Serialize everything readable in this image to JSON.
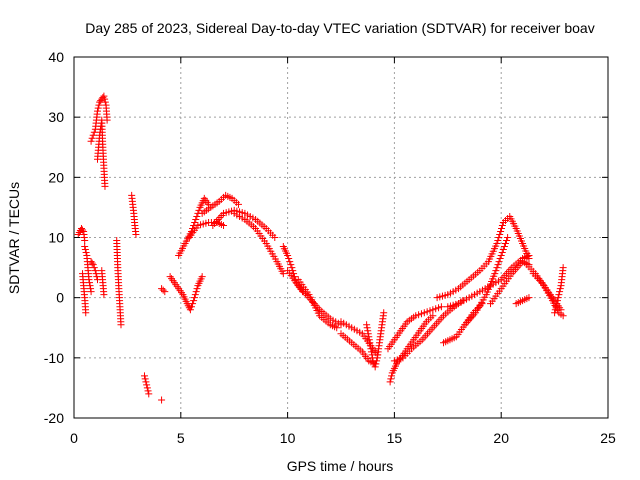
{
  "chart_data": {
    "type": "scatter",
    "title": "Day 285 of 2023, Sidereal Day-to-day VTEC variation (SDTVAR) for receiver boav",
    "xlabel": "GPS time / hours",
    "ylabel": "SDTVAR / TECUs",
    "xlim": [
      0,
      25
    ],
    "ylim": [
      -20,
      40
    ],
    "xticks": [
      0,
      5,
      10,
      15,
      20,
      25
    ],
    "yticks": [
      -20,
      -10,
      0,
      10,
      20,
      30,
      40
    ],
    "xtick_labels": [
      "0",
      "5",
      "10",
      "15",
      "20",
      "25"
    ],
    "ytick_labels": [
      "-20",
      "-10",
      "0",
      "10",
      "20",
      "30",
      "40"
    ],
    "grid": true,
    "marker": "+",
    "colors": {
      "series": "#ff0000",
      "grid": "#a0a0a0",
      "axis": "#000000"
    },
    "segments": [
      [
        [
          0.2,
          10.5
        ],
        [
          0.35,
          11.5
        ],
        [
          0.45,
          11.0
        ],
        [
          0.5,
          9.5
        ]
      ],
      [
        [
          0.4,
          4.0
        ],
        [
          0.45,
          2.0
        ],
        [
          0.5,
          0.0
        ],
        [
          0.55,
          -2.5
        ]
      ],
      [
        [
          0.5,
          8.5
        ],
        [
          0.6,
          7.0
        ],
        [
          0.65,
          5.0
        ],
        [
          0.7,
          3.0
        ],
        [
          0.8,
          1.0
        ]
      ],
      [
        [
          0.8,
          6.0
        ],
        [
          0.9,
          5.5
        ],
        [
          1.0,
          4.5
        ],
        [
          1.1,
          3.0
        ]
      ],
      [
        [
          0.8,
          26.0
        ],
        [
          0.9,
          27.0
        ],
        [
          1.0,
          28.0
        ],
        [
          1.1,
          31.0
        ],
        [
          1.2,
          32.5
        ],
        [
          1.3,
          33.0
        ],
        [
          1.4,
          33.5
        ],
        [
          1.5,
          32.0
        ],
        [
          1.55,
          29.5
        ]
      ],
      [
        [
          1.1,
          23.0
        ],
        [
          1.15,
          25.0
        ],
        [
          1.2,
          27.0
        ],
        [
          1.3,
          29.5
        ],
        [
          1.35,
          25.0
        ],
        [
          1.4,
          21.5
        ],
        [
          1.45,
          18.5
        ]
      ],
      [
        [
          1.3,
          4.5
        ],
        [
          1.35,
          2.5
        ],
        [
          1.4,
          0.5
        ]
      ],
      [
        [
          2.0,
          9.5
        ],
        [
          2.05,
          5.0
        ],
        [
          2.1,
          1.5
        ],
        [
          2.15,
          -1.5
        ],
        [
          2.2,
          -4.5
        ]
      ],
      [
        [
          2.7,
          17.0
        ],
        [
          2.75,
          15.5
        ],
        [
          2.8,
          14.0
        ],
        [
          2.85,
          12.0
        ],
        [
          2.9,
          10.5
        ]
      ],
      [
        [
          3.3,
          -13.0
        ],
        [
          3.4,
          -14.5
        ],
        [
          3.5,
          -16.0
        ]
      ],
      [
        [
          4.1,
          -17.0
        ]
      ],
      [
        [
          4.1,
          1.5
        ],
        [
          4.25,
          1.0
        ]
      ],
      [
        [
          4.5,
          3.5
        ],
        [
          4.7,
          2.5
        ],
        [
          4.9,
          1.5
        ],
        [
          5.1,
          0.5
        ],
        [
          5.3,
          -1.0
        ],
        [
          5.45,
          -2.0
        ],
        [
          5.6,
          -0.5
        ],
        [
          5.8,
          2.0
        ],
        [
          6.0,
          3.5
        ]
      ],
      [
        [
          4.9,
          7.0
        ],
        [
          5.2,
          9.0
        ],
        [
          5.5,
          11.0
        ],
        [
          5.7,
          13.0
        ],
        [
          5.9,
          15.0
        ],
        [
          6.1,
          16.5
        ],
        [
          6.3,
          15.5
        ]
      ],
      [
        [
          5.4,
          10.0
        ],
        [
          5.8,
          12.0
        ],
        [
          6.3,
          12.5
        ],
        [
          6.7,
          12.5
        ],
        [
          7.0,
          12.0
        ]
      ],
      [
        [
          6.0,
          14.0
        ],
        [
          6.4,
          15.0
        ],
        [
          6.8,
          16.0
        ],
        [
          7.1,
          17.0
        ],
        [
          7.4,
          16.5
        ],
        [
          7.7,
          15.5
        ]
      ],
      [
        [
          6.5,
          12.0
        ],
        [
          7.0,
          14.0
        ],
        [
          7.5,
          14.5
        ],
        [
          8.0,
          14.0
        ],
        [
          8.5,
          13.0
        ],
        [
          9.0,
          11.5
        ],
        [
          9.4,
          10.0
        ]
      ],
      [
        [
          7.5,
          14.0
        ],
        [
          8.0,
          13.0
        ],
        [
          8.5,
          11.5
        ],
        [
          9.0,
          9.0
        ],
        [
          9.5,
          6.0
        ],
        [
          9.8,
          4.0
        ]
      ],
      [
        [
          9.8,
          8.5
        ],
        [
          10.0,
          7.0
        ],
        [
          10.2,
          5.0
        ],
        [
          10.4,
          2.5
        ],
        [
          10.7,
          1.0
        ]
      ],
      [
        [
          10.0,
          4.5
        ],
        [
          10.5,
          2.0
        ],
        [
          11.0,
          0.0
        ],
        [
          11.5,
          -2.0
        ],
        [
          12.0,
          -3.5
        ],
        [
          12.5,
          -4.5
        ]
      ],
      [
        [
          10.5,
          3.0
        ],
        [
          11.0,
          0.5
        ],
        [
          11.5,
          -3.0
        ],
        [
          12.0,
          -4.5
        ],
        [
          12.3,
          -5.0
        ]
      ],
      [
        [
          12.5,
          -4.0
        ],
        [
          13.0,
          -5.0
        ],
        [
          13.5,
          -6.0
        ],
        [
          13.9,
          -8.0
        ],
        [
          14.2,
          -9.5
        ]
      ],
      [
        [
          12.5,
          -6.0
        ],
        [
          13.0,
          -7.5
        ],
        [
          13.5,
          -9.0
        ],
        [
          13.8,
          -10.5
        ],
        [
          14.1,
          -11.0
        ]
      ],
      [
        [
          13.7,
          -4.5
        ],
        [
          13.8,
          -6.5
        ],
        [
          13.9,
          -8.5
        ],
        [
          14.0,
          -10.5
        ],
        [
          14.1,
          -11.5
        ],
        [
          14.2,
          -10.0
        ],
        [
          14.3,
          -7.5
        ],
        [
          14.4,
          -5.0
        ],
        [
          14.5,
          -2.5
        ]
      ],
      [
        [
          14.8,
          -14.0
        ],
        [
          14.9,
          -12.5
        ],
        [
          15.1,
          -11.0
        ],
        [
          15.3,
          -10.0
        ],
        [
          15.6,
          -8.5
        ],
        [
          15.9,
          -7.0
        ],
        [
          16.2,
          -5.5
        ],
        [
          16.5,
          -4.0
        ],
        [
          16.8,
          -3.0
        ]
      ],
      [
        [
          14.7,
          -8.5
        ],
        [
          15.0,
          -7.0
        ],
        [
          15.3,
          -5.5
        ],
        [
          15.6,
          -4.0
        ],
        [
          16.0,
          -3.0
        ],
        [
          16.4,
          -2.5
        ],
        [
          16.8,
          -2.0
        ],
        [
          17.2,
          -1.5
        ]
      ],
      [
        [
          15.0,
          -10.5
        ],
        [
          15.4,
          -10.0
        ],
        [
          15.8,
          -8.5
        ],
        [
          16.3,
          -7.0
        ],
        [
          16.8,
          -5.0
        ],
        [
          17.3,
          -3.0
        ],
        [
          17.8,
          -1.5
        ],
        [
          18.2,
          -0.5
        ]
      ],
      [
        [
          17.3,
          -7.5
        ],
        [
          17.6,
          -7.0
        ],
        [
          17.9,
          -6.5
        ],
        [
          18.3,
          -4.5
        ],
        [
          18.7,
          -2.5
        ],
        [
          19.1,
          -1.0
        ]
      ],
      [
        [
          17.5,
          -1.5
        ],
        [
          18.0,
          -1.0
        ],
        [
          18.5,
          0.0
        ],
        [
          19.0,
          1.0
        ],
        [
          19.5,
          2.0
        ],
        [
          20.0,
          3.0
        ],
        [
          20.5,
          5.0
        ],
        [
          21.0,
          6.5
        ],
        [
          21.3,
          7.0
        ]
      ],
      [
        [
          17.0,
          0.0
        ],
        [
          17.5,
          0.5
        ],
        [
          18.0,
          1.5
        ],
        [
          18.5,
          3.0
        ],
        [
          19.0,
          4.5
        ],
        [
          19.4,
          6.0
        ],
        [
          19.8,
          9.0
        ],
        [
          20.1,
          12.5
        ],
        [
          20.4,
          13.5
        ],
        [
          20.7,
          11.5
        ],
        [
          21.0,
          9.0
        ],
        [
          21.3,
          6.5
        ]
      ],
      [
        [
          18.3,
          -4.5
        ],
        [
          18.8,
          -2.5
        ],
        [
          19.3,
          0.5
        ],
        [
          19.7,
          4.0
        ],
        [
          20.0,
          7.0
        ],
        [
          20.3,
          10.0
        ]
      ],
      [
        [
          19.5,
          -1.0
        ],
        [
          20.0,
          1.5
        ],
        [
          20.5,
          4.0
        ],
        [
          21.0,
          6.0
        ],
        [
          21.3,
          5.5
        ]
      ],
      [
        [
          20.7,
          -1.0
        ],
        [
          21.0,
          -0.5
        ],
        [
          21.3,
          0.0
        ]
      ],
      [
        [
          21.2,
          5.5
        ],
        [
          21.6,
          4.0
        ],
        [
          22.0,
          2.0
        ],
        [
          22.4,
          -0.5
        ],
        [
          22.7,
          -2.5
        ],
        [
          22.9,
          -3.0
        ]
      ],
      [
        [
          21.5,
          4.0
        ],
        [
          21.9,
          2.5
        ],
        [
          22.3,
          0.5
        ],
        [
          22.6,
          -1.0
        ],
        [
          22.8,
          -2.0
        ]
      ],
      [
        [
          22.5,
          -2.5
        ],
        [
          22.6,
          -1.0
        ],
        [
          22.7,
          0.5
        ],
        [
          22.8,
          2.0
        ],
        [
          22.85,
          3.5
        ],
        [
          22.9,
          5.0
        ]
      ]
    ]
  }
}
